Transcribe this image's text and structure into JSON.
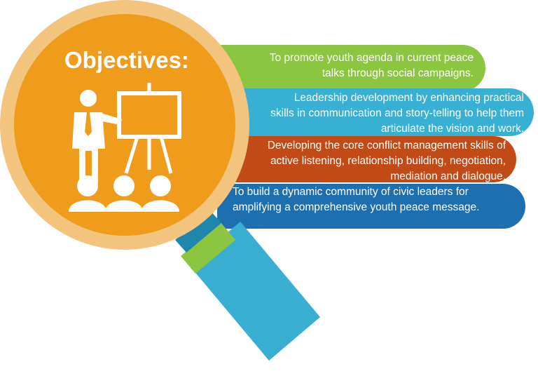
{
  "title": "Objectives:",
  "objectives": [
    {
      "color": "#8cc540",
      "lines": [
        "To promote youth agenda in current peace",
        "talks through social campaigns."
      ]
    },
    {
      "color": "#37b0d3",
      "lines": [
        "Leadership development by enhancing practical",
        "skills in communication and story-telling to help them",
        "articulate the vision and work."
      ]
    },
    {
      "color": "#c14a16",
      "lines": [
        "Developing the core conflict management skills of",
        "active listening, relationship building, negotiation,",
        "mediation and dialogue."
      ]
    },
    {
      "color": "#1e6fb0",
      "lines": [
        "To build a dynamic community of civic leaders for",
        "amplifying a comprehensive youth peace message."
      ]
    }
  ],
  "magnifier": {
    "ring_color": "#f3c47e",
    "lens_color": "#ef9b1c",
    "collar_color": "#8cc540",
    "handle_color": "#3aaed0"
  },
  "icons": [
    "presenter-icon",
    "easel-board-icon",
    "audience-icon"
  ]
}
